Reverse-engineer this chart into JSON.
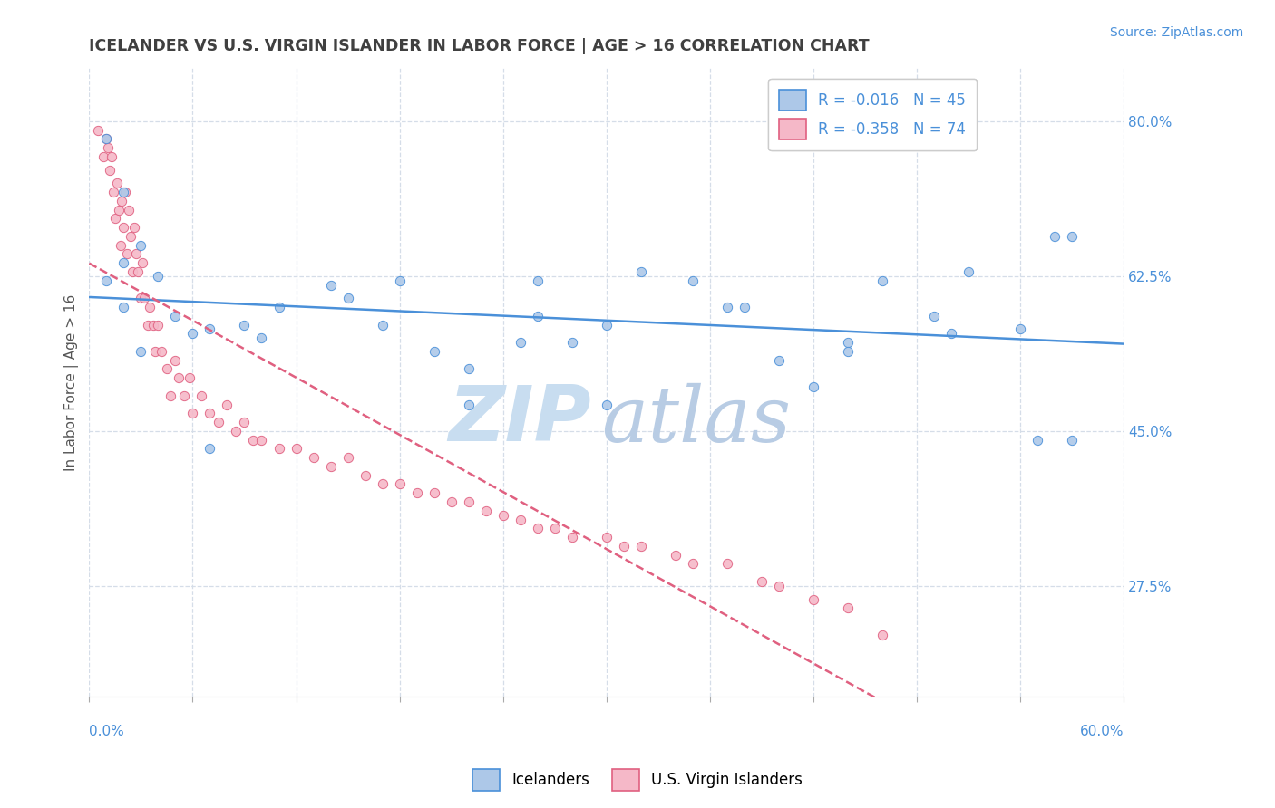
{
  "title": "ICELANDER VS U.S. VIRGIN ISLANDER IN LABOR FORCE | AGE > 16 CORRELATION CHART",
  "source_text": "Source: ZipAtlas.com",
  "ylabel": "In Labor Force | Age > 16",
  "xmin": 0.0,
  "xmax": 0.6,
  "ymin": 0.15,
  "ymax": 0.86,
  "icelander_color": "#adc8e8",
  "usvi_color": "#f5b8c8",
  "trend_ice_color": "#4a90d9",
  "trend_usvi_color": "#e06080",
  "watermark_zip_color": "#c8ddf0",
  "watermark_atlas_color": "#b8cce4",
  "grid_color": "#d5dde8",
  "axis_label_color": "#4a90d9",
  "title_color": "#404040",
  "source_color": "#4a90d9",
  "yticks": [
    0.275,
    0.45,
    0.625,
    0.8
  ],
  "ytick_labels": [
    "27.5%",
    "45.0%",
    "62.5%",
    "80.0%"
  ],
  "icelander_x": [
    0.01,
    0.02,
    0.02,
    0.03,
    0.01,
    0.02,
    0.03,
    0.04,
    0.05,
    0.06,
    0.07,
    0.09,
    0.1,
    0.11,
    0.14,
    0.15,
    0.17,
    0.18,
    0.2,
    0.22,
    0.22,
    0.25,
    0.26,
    0.28,
    0.3,
    0.32,
    0.35,
    0.37,
    0.38,
    0.4,
    0.42,
    0.44,
    0.46,
    0.49,
    0.5,
    0.51,
    0.54,
    0.55,
    0.56,
    0.57,
    0.3,
    0.44,
    0.26,
    0.57,
    0.07
  ],
  "icelander_y": [
    0.78,
    0.72,
    0.59,
    0.54,
    0.62,
    0.64,
    0.66,
    0.625,
    0.58,
    0.56,
    0.565,
    0.57,
    0.555,
    0.59,
    0.615,
    0.6,
    0.57,
    0.62,
    0.54,
    0.52,
    0.48,
    0.55,
    0.58,
    0.55,
    0.57,
    0.63,
    0.62,
    0.59,
    0.59,
    0.53,
    0.5,
    0.55,
    0.62,
    0.58,
    0.56,
    0.63,
    0.565,
    0.44,
    0.67,
    0.44,
    0.48,
    0.54,
    0.62,
    0.67,
    0.43
  ],
  "usvi_x": [
    0.005,
    0.008,
    0.01,
    0.011,
    0.012,
    0.013,
    0.014,
    0.015,
    0.016,
    0.017,
    0.018,
    0.019,
    0.02,
    0.021,
    0.022,
    0.023,
    0.024,
    0.025,
    0.026,
    0.027,
    0.028,
    0.03,
    0.031,
    0.032,
    0.034,
    0.035,
    0.037,
    0.038,
    0.04,
    0.042,
    0.045,
    0.047,
    0.05,
    0.052,
    0.055,
    0.058,
    0.06,
    0.065,
    0.07,
    0.075,
    0.08,
    0.085,
    0.09,
    0.095,
    0.1,
    0.11,
    0.12,
    0.13,
    0.14,
    0.15,
    0.16,
    0.17,
    0.18,
    0.19,
    0.2,
    0.21,
    0.22,
    0.23,
    0.24,
    0.25,
    0.26,
    0.27,
    0.28,
    0.3,
    0.31,
    0.32,
    0.34,
    0.35,
    0.37,
    0.39,
    0.4,
    0.42,
    0.44,
    0.46
  ],
  "usvi_y": [
    0.79,
    0.76,
    0.78,
    0.77,
    0.745,
    0.76,
    0.72,
    0.69,
    0.73,
    0.7,
    0.66,
    0.71,
    0.68,
    0.72,
    0.65,
    0.7,
    0.67,
    0.63,
    0.68,
    0.65,
    0.63,
    0.6,
    0.64,
    0.6,
    0.57,
    0.59,
    0.57,
    0.54,
    0.57,
    0.54,
    0.52,
    0.49,
    0.53,
    0.51,
    0.49,
    0.51,
    0.47,
    0.49,
    0.47,
    0.46,
    0.48,
    0.45,
    0.46,
    0.44,
    0.44,
    0.43,
    0.43,
    0.42,
    0.41,
    0.42,
    0.4,
    0.39,
    0.39,
    0.38,
    0.38,
    0.37,
    0.37,
    0.36,
    0.355,
    0.35,
    0.34,
    0.34,
    0.33,
    0.33,
    0.32,
    0.32,
    0.31,
    0.3,
    0.3,
    0.28,
    0.275,
    0.26,
    0.25,
    0.22
  ]
}
